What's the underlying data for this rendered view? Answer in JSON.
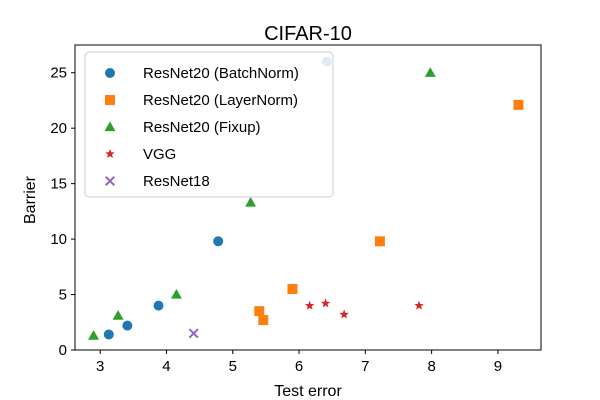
{
  "chart_data": {
    "type": "scatter",
    "title": "CIFAR-10",
    "xlabel": "Test error",
    "ylabel": "Barrier",
    "xlim": [
      2.62,
      9.65
    ],
    "ylim": [
      0,
      27.5
    ],
    "xticks": [
      3,
      4,
      5,
      6,
      7,
      8,
      9
    ],
    "yticks": [
      0,
      5,
      10,
      15,
      20,
      25
    ],
    "grid": false,
    "legend_position": "top-left",
    "series": [
      {
        "name": "ResNet20 (BatchNorm)",
        "marker": "circle",
        "color": "#1f77b4",
        "points": [
          [
            3.13,
            1.4
          ],
          [
            3.41,
            2.2
          ],
          [
            3.88,
            4.0
          ],
          [
            4.78,
            9.8
          ],
          [
            6.42,
            26.0
          ]
        ]
      },
      {
        "name": "ResNet20 (LayerNorm)",
        "marker": "square",
        "color": "#ff7f0e",
        "points": [
          [
            5.4,
            3.5
          ],
          [
            5.46,
            2.7
          ],
          [
            5.9,
            5.5
          ],
          [
            7.22,
            9.8
          ],
          [
            9.31,
            22.1
          ]
        ]
      },
      {
        "name": "ResNet20 (Fixup)",
        "marker": "triangle",
        "color": "#2ca02c",
        "points": [
          [
            2.9,
            1.3
          ],
          [
            3.27,
            3.1
          ],
          [
            4.15,
            5.0
          ],
          [
            5.27,
            13.3
          ],
          [
            7.98,
            25.0
          ]
        ]
      },
      {
        "name": "VGG",
        "marker": "star",
        "color": "#d62728",
        "points": [
          [
            6.16,
            4.0
          ],
          [
            6.4,
            4.2
          ],
          [
            6.68,
            3.2
          ],
          [
            7.81,
            4.0
          ]
        ]
      },
      {
        "name": "ResNet18",
        "marker": "x",
        "color": "#9467bd",
        "points": [
          [
            4.41,
            1.5
          ]
        ]
      }
    ]
  }
}
